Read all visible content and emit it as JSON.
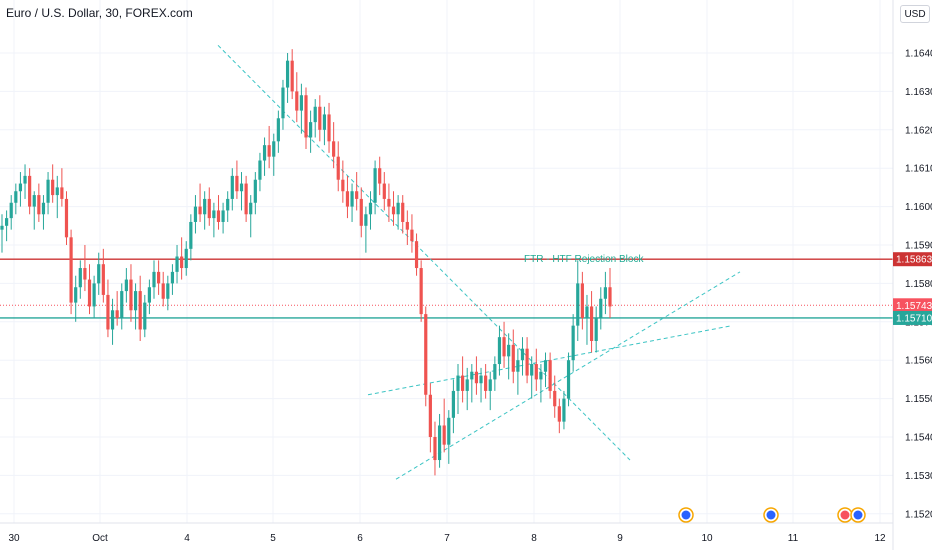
{
  "header": {
    "title": "Euro / U.S. Dollar, 30, FOREX.com",
    "currency": "USD"
  },
  "chart_data": {
    "type": "candlestick",
    "title": "Euro / U.S. Dollar, 30, FOREX.com",
    "ylim": [
      1.1516,
      1.1655
    ],
    "y_ticks": [
      "1.16400",
      "1.16300",
      "1.16200",
      "1.16100",
      "1.16000",
      "1.15900",
      "1.15800",
      "1.15700",
      "1.15600",
      "1.15500",
      "1.15400",
      "1.15300",
      "1.15200"
    ],
    "x_ticks": [
      "30",
      "Oct",
      "4",
      "5",
      "6",
      "7",
      "8",
      "9",
      "10",
      "11",
      "12"
    ],
    "price_levels": [
      {
        "label": "1.15863",
        "value": 1.15863,
        "color": "#cc3333",
        "style": "solid"
      },
      {
        "label": "1.15743",
        "value": 1.15743,
        "color": "#f7525f",
        "style": "dotted"
      },
      {
        "label": "1.15710",
        "value": 1.1571,
        "color": "#26a69a",
        "style": "solid"
      }
    ],
    "annotation": {
      "text": "FTR - HTF Rejection Block",
      "color": "#22ab94"
    },
    "colors": {
      "up": "#26a69a",
      "down": "#ef5350",
      "trend": "#3cc4c4",
      "grid": "#f0f3fa"
    },
    "candles": [
      [
        1.1594,
        1.1598,
        1.1588,
        1.1595
      ],
      [
        1.1595,
        1.1599,
        1.1591,
        1.1597
      ],
      [
        1.1597,
        1.1603,
        1.1594,
        1.1601
      ],
      [
        1.1601,
        1.1606,
        1.1598,
        1.1604
      ],
      [
        1.1604,
        1.1609,
        1.16,
        1.1606
      ],
      [
        1.1606,
        1.1611,
        1.1602,
        1.1608
      ],
      [
        1.1608,
        1.161,
        1.1598,
        1.16
      ],
      [
        1.16,
        1.1604,
        1.1594,
        1.1603
      ],
      [
        1.1603,
        1.1606,
        1.1596,
        1.1598
      ],
      [
        1.1598,
        1.1603,
        1.1594,
        1.1601
      ],
      [
        1.1601,
        1.1609,
        1.1598,
        1.1607
      ],
      [
        1.1607,
        1.1611,
        1.1601,
        1.1603
      ],
      [
        1.1603,
        1.1608,
        1.1597,
        1.1605
      ],
      [
        1.1605,
        1.161,
        1.16,
        1.1602
      ],
      [
        1.1602,
        1.1604,
        1.159,
        1.1592
      ],
      [
        1.1592,
        1.1594,
        1.1572,
        1.1575
      ],
      [
        1.1575,
        1.1582,
        1.157,
        1.1579
      ],
      [
        1.1579,
        1.1586,
        1.1576,
        1.1584
      ],
      [
        1.1584,
        1.159,
        1.1578,
        1.1581
      ],
      [
        1.1581,
        1.1585,
        1.1572,
        1.1574
      ],
      [
        1.1574,
        1.1582,
        1.1571,
        1.158
      ],
      [
        1.158,
        1.1588,
        1.1577,
        1.1585
      ],
      [
        1.1585,
        1.1589,
        1.1575,
        1.1577
      ],
      [
        1.1577,
        1.1581,
        1.1566,
        1.1568
      ],
      [
        1.1568,
        1.1576,
        1.1564,
        1.1573
      ],
      [
        1.1573,
        1.1578,
        1.1569,
        1.1571
      ],
      [
        1.1571,
        1.158,
        1.1568,
        1.1578
      ],
      [
        1.1578,
        1.1584,
        1.1575,
        1.1581
      ],
      [
        1.1581,
        1.1585,
        1.157,
        1.1573
      ],
      [
        1.1573,
        1.158,
        1.1568,
        1.1578
      ],
      [
        1.1578,
        1.1582,
        1.1565,
        1.1568
      ],
      [
        1.1568,
        1.1577,
        1.1566,
        1.1575
      ],
      [
        1.1575,
        1.1581,
        1.1572,
        1.1579
      ],
      [
        1.1579,
        1.1586,
        1.1576,
        1.1583
      ],
      [
        1.1583,
        1.1586,
        1.1577,
        1.158
      ],
      [
        1.158,
        1.1583,
        1.1574,
        1.1576
      ],
      [
        1.1576,
        1.1582,
        1.1573,
        1.158
      ],
      [
        1.158,
        1.1585,
        1.1577,
        1.1583
      ],
      [
        1.1583,
        1.159,
        1.158,
        1.1587
      ],
      [
        1.1587,
        1.1592,
        1.1581,
        1.1584
      ],
      [
        1.1584,
        1.1591,
        1.1582,
        1.1589
      ],
      [
        1.1589,
        1.1598,
        1.1586,
        1.1596
      ],
      [
        1.1596,
        1.1603,
        1.1593,
        1.16
      ],
      [
        1.16,
        1.1606,
        1.1596,
        1.1598
      ],
      [
        1.1598,
        1.1604,
        1.1594,
        1.1602
      ],
      [
        1.1602,
        1.1605,
        1.1595,
        1.1597
      ],
      [
        1.1597,
        1.1601,
        1.1592,
        1.1599
      ],
      [
        1.1599,
        1.1603,
        1.1594,
        1.1596
      ],
      [
        1.1596,
        1.1601,
        1.1593,
        1.1599
      ],
      [
        1.1599,
        1.1604,
        1.1596,
        1.1602
      ],
      [
        1.1602,
        1.161,
        1.1599,
        1.1608
      ],
      [
        1.1608,
        1.1612,
        1.1602,
        1.1604
      ],
      [
        1.1604,
        1.1609,
        1.1599,
        1.1606
      ],
      [
        1.1606,
        1.1608,
        1.1596,
        1.1598
      ],
      [
        1.1598,
        1.1603,
        1.1592,
        1.1601
      ],
      [
        1.1601,
        1.1609,
        1.1598,
        1.1607
      ],
      [
        1.1607,
        1.1614,
        1.1604,
        1.1612
      ],
      [
        1.1612,
        1.1618,
        1.1608,
        1.1616
      ],
      [
        1.1616,
        1.1621,
        1.161,
        1.1613
      ],
      [
        1.1613,
        1.1619,
        1.1608,
        1.1617
      ],
      [
        1.1617,
        1.1625,
        1.1614,
        1.1623
      ],
      [
        1.1623,
        1.1633,
        1.162,
        1.1631
      ],
      [
        1.1631,
        1.164,
        1.1627,
        1.1638
      ],
      [
        1.1638,
        1.1641,
        1.1628,
        1.163
      ],
      [
        1.163,
        1.1635,
        1.1622,
        1.1625
      ],
      [
        1.1625,
        1.1632,
        1.1619,
        1.1629
      ],
      [
        1.1629,
        1.1631,
        1.1615,
        1.1618
      ],
      [
        1.1618,
        1.1625,
        1.1614,
        1.1622
      ],
      [
        1.1622,
        1.1628,
        1.1618,
        1.1626
      ],
      [
        1.1626,
        1.1629,
        1.1617,
        1.162
      ],
      [
        1.162,
        1.1626,
        1.1616,
        1.1624
      ],
      [
        1.1624,
        1.1627,
        1.1614,
        1.1617
      ],
      [
        1.1617,
        1.1622,
        1.161,
        1.1613
      ],
      [
        1.1613,
        1.1617,
        1.1604,
        1.1607
      ],
      [
        1.1607,
        1.1612,
        1.1601,
        1.1604
      ],
      [
        1.1604,
        1.1608,
        1.1597,
        1.16
      ],
      [
        1.16,
        1.1606,
        1.1596,
        1.1604
      ],
      [
        1.1604,
        1.1609,
        1.1599,
        1.1602
      ],
      [
        1.1602,
        1.1605,
        1.1592,
        1.1595
      ],
      [
        1.1595,
        1.16,
        1.1588,
        1.1598
      ],
      [
        1.1598,
        1.1604,
        1.1594,
        1.1601
      ],
      [
        1.1601,
        1.1612,
        1.1598,
        1.161
      ],
      [
        1.161,
        1.1613,
        1.1603,
        1.1606
      ],
      [
        1.1606,
        1.1609,
        1.1599,
        1.1602
      ],
      [
        1.1602,
        1.1606,
        1.1596,
        1.16
      ],
      [
        1.16,
        1.1604,
        1.1595,
        1.1598
      ],
      [
        1.1598,
        1.1603,
        1.1594,
        1.1601
      ],
      [
        1.1601,
        1.1603,
        1.1593,
        1.1596
      ],
      [
        1.1596,
        1.1599,
        1.159,
        1.1594
      ],
      [
        1.1594,
        1.1598,
        1.1588,
        1.1591
      ],
      [
        1.1591,
        1.1593,
        1.1582,
        1.1584
      ],
      [
        1.1584,
        1.1586,
        1.157,
        1.1572
      ],
      [
        1.1572,
        1.1574,
        1.1548,
        1.1551
      ],
      [
        1.1551,
        1.1554,
        1.1536,
        1.154
      ],
      [
        1.154,
        1.1544,
        1.153,
        1.1534
      ],
      [
        1.1534,
        1.1546,
        1.1532,
        1.1543
      ],
      [
        1.1543,
        1.155,
        1.1536,
        1.1538
      ],
      [
        1.1538,
        1.1547,
        1.1533,
        1.1545
      ],
      [
        1.1545,
        1.1555,
        1.1541,
        1.1552
      ],
      [
        1.1552,
        1.1559,
        1.1546,
        1.1556
      ],
      [
        1.1556,
        1.1561,
        1.1549,
        1.1552
      ],
      [
        1.1552,
        1.1558,
        1.1547,
        1.1555
      ],
      [
        1.1555,
        1.1559,
        1.1549,
        1.1557
      ],
      [
        1.1557,
        1.1561,
        1.1551,
        1.1554
      ],
      [
        1.1554,
        1.1558,
        1.1549,
        1.1556
      ],
      [
        1.1556,
        1.1559,
        1.155,
        1.1552
      ],
      [
        1.1552,
        1.1557,
        1.1547,
        1.1555
      ],
      [
        1.1555,
        1.1561,
        1.1552,
        1.1559
      ],
      [
        1.1559,
        1.1569,
        1.1556,
        1.1566
      ],
      [
        1.1566,
        1.157,
        1.1558,
        1.1561
      ],
      [
        1.1561,
        1.1567,
        1.1555,
        1.1564
      ],
      [
        1.1564,
        1.1568,
        1.1554,
        1.1557
      ],
      [
        1.1557,
        1.1563,
        1.1551,
        1.156
      ],
      [
        1.156,
        1.1566,
        1.1556,
        1.1563
      ],
      [
        1.1563,
        1.1566,
        1.1554,
        1.1556
      ],
      [
        1.1556,
        1.1561,
        1.155,
        1.1559
      ],
      [
        1.1559,
        1.1563,
        1.1552,
        1.1555
      ],
      [
        1.1555,
        1.1559,
        1.1549,
        1.1557
      ],
      [
        1.1557,
        1.1562,
        1.1553,
        1.156
      ],
      [
        1.156,
        1.1562,
        1.155,
        1.1552
      ],
      [
        1.1552,
        1.1556,
        1.1545,
        1.1548
      ],
      [
        1.1548,
        1.155,
        1.1541,
        1.1544
      ],
      [
        1.1544,
        1.1552,
        1.1542,
        1.155
      ],
      [
        1.155,
        1.1562,
        1.1548,
        1.156
      ],
      [
        1.156,
        1.1572,
        1.1557,
        1.1569
      ],
      [
        1.1569,
        1.1586,
        1.1565,
        1.158
      ],
      [
        1.158,
        1.1583,
        1.1568,
        1.1571
      ],
      [
        1.1571,
        1.1577,
        1.1564,
        1.1574
      ],
      [
        1.1574,
        1.1578,
        1.1562,
        1.1565
      ],
      [
        1.1565,
        1.1574,
        1.1562,
        1.1571
      ],
      [
        1.1571,
        1.1579,
        1.1568,
        1.1576
      ],
      [
        1.1576,
        1.1583,
        1.1572,
        1.1579
      ],
      [
        1.1579,
        1.1584,
        1.1571,
        1.1574
      ]
    ]
  }
}
